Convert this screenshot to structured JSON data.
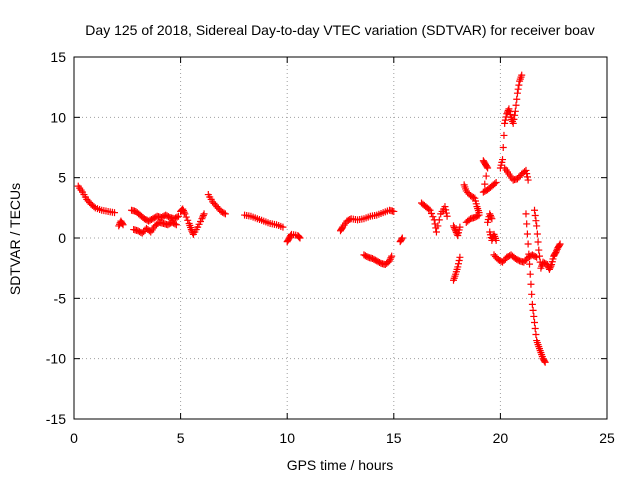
{
  "chart_data": {
    "type": "scatter",
    "title": "Day 125 of 2018, Sidereal Day-to-day VTEC variation (SDTVAR) for receiver boav",
    "xlabel": "GPS time / hours",
    "ylabel": "SDTVAR / TECUs",
    "xlim": [
      0,
      25
    ],
    "ylim": [
      -15,
      15
    ],
    "xticks": [
      0,
      5,
      10,
      15,
      20,
      25
    ],
    "yticks": [
      -15,
      -10,
      -5,
      0,
      5,
      10,
      15
    ],
    "xtick_labels": [
      "0",
      "5",
      "10",
      "15",
      "20",
      "25"
    ],
    "ytick_labels": [
      "-15",
      "-10",
      "-5",
      "0",
      "5",
      "10",
      "15"
    ],
    "grid": true,
    "marker": "+",
    "series": [
      {
        "name": "SDTVAR",
        "color": "#ff0000",
        "segments": [
          [
            [
              0.2,
              4.3
            ],
            [
              0.4,
              3.8
            ],
            [
              0.6,
              3.2
            ],
            [
              0.8,
              2.8
            ],
            [
              1.0,
              2.5
            ],
            [
              1.3,
              2.3
            ],
            [
              1.6,
              2.2
            ],
            [
              1.9,
              2.1
            ]
          ],
          [
            [
              2.1,
              1.0
            ],
            [
              2.2,
              1.4
            ],
            [
              2.3,
              1.1
            ]
          ],
          [
            [
              2.7,
              2.3
            ],
            [
              2.9,
              2.2
            ],
            [
              3.1,
              1.9
            ],
            [
              3.3,
              1.6
            ],
            [
              3.5,
              1.4
            ],
            [
              3.7,
              1.6
            ],
            [
              3.9,
              1.8
            ],
            [
              4.1,
              1.7
            ],
            [
              4.3,
              1.9
            ],
            [
              4.5,
              1.7
            ],
            [
              4.7,
              1.6
            ],
            [
              4.9,
              1.8
            ]
          ],
          [
            [
              2.8,
              0.7
            ],
            [
              3.0,
              0.6
            ],
            [
              3.2,
              0.4
            ],
            [
              3.4,
              0.8
            ],
            [
              3.6,
              0.5
            ],
            [
              3.8,
              1.0
            ],
            [
              4.0,
              1.3
            ],
            [
              4.2,
              1.2
            ],
            [
              4.4,
              1.1
            ],
            [
              4.6,
              1.3
            ],
            [
              4.8,
              1.1
            ]
          ],
          [
            [
              5.0,
              2.2
            ],
            [
              5.1,
              2.4
            ],
            [
              5.2,
              2.0
            ],
            [
              5.4,
              1.2
            ],
            [
              5.5,
              0.7
            ],
            [
              5.6,
              0.3
            ],
            [
              5.8,
              0.9
            ],
            [
              6.0,
              1.6
            ],
            [
              6.1,
              2.0
            ]
          ],
          [
            [
              6.3,
              3.6
            ],
            [
              6.5,
              3.0
            ],
            [
              6.7,
              2.6
            ],
            [
              6.9,
              2.2
            ],
            [
              7.1,
              2.0
            ]
          ],
          [
            [
              8.0,
              1.9
            ],
            [
              8.3,
              1.8
            ],
            [
              8.6,
              1.6
            ],
            [
              8.9,
              1.4
            ],
            [
              9.2,
              1.2
            ],
            [
              9.5,
              1.1
            ],
            [
              9.8,
              0.9
            ]
          ],
          [
            [
              10.0,
              -0.3
            ],
            [
              10.1,
              0.0
            ],
            [
              10.2,
              0.3
            ],
            [
              10.5,
              0.2
            ],
            [
              10.6,
              0.0
            ]
          ],
          [
            [
              12.5,
              0.6
            ],
            [
              12.6,
              0.9
            ],
            [
              12.8,
              1.4
            ],
            [
              13.0,
              1.6
            ],
            [
              13.3,
              1.5
            ],
            [
              13.6,
              1.6
            ],
            [
              13.9,
              1.8
            ],
            [
              14.2,
              1.9
            ],
            [
              14.5,
              2.1
            ],
            [
              14.8,
              2.3
            ],
            [
              15.0,
              2.2
            ]
          ],
          [
            [
              13.6,
              -1.4
            ],
            [
              13.8,
              -1.6
            ],
            [
              14.0,
              -1.7
            ],
            [
              14.2,
              -1.9
            ],
            [
              14.4,
              -2.1
            ],
            [
              14.6,
              -2.2
            ],
            [
              14.8,
              -1.9
            ],
            [
              14.9,
              -1.5
            ]
          ],
          [
            [
              15.3,
              -0.3
            ],
            [
              15.4,
              0.0
            ]
          ],
          [
            [
              16.3,
              2.9
            ],
            [
              16.5,
              2.6
            ],
            [
              16.7,
              2.3
            ],
            [
              16.9,
              1.5
            ],
            [
              17.0,
              0.5
            ],
            [
              17.2,
              2.0
            ],
            [
              17.4,
              2.6
            ],
            [
              17.5,
              1.8
            ]
          ],
          [
            [
              17.8,
              1.0
            ],
            [
              17.9,
              0.6
            ],
            [
              18.0,
              0.2
            ],
            [
              18.1,
              0.9
            ]
          ],
          [
            [
              17.8,
              -3.5
            ],
            [
              17.9,
              -3.0
            ],
            [
              18.0,
              -2.4
            ],
            [
              18.1,
              -1.6
            ]
          ],
          [
            [
              18.3,
              4.4
            ],
            [
              18.4,
              3.9
            ],
            [
              18.6,
              3.5
            ],
            [
              18.8,
              3.3
            ],
            [
              18.9,
              2.6
            ],
            [
              19.0,
              2.1
            ]
          ],
          [
            [
              18.4,
              1.3
            ],
            [
              18.6,
              1.6
            ],
            [
              18.8,
              1.7
            ],
            [
              19.0,
              1.9
            ]
          ],
          [
            [
              19.2,
              6.4
            ],
            [
              19.3,
              6.1
            ],
            [
              19.4,
              5.8
            ],
            [
              19.2,
              3.8
            ],
            [
              19.4,
              4.0
            ],
            [
              19.6,
              4.3
            ],
            [
              19.8,
              4.6
            ]
          ],
          [
            [
              19.4,
              1.3
            ],
            [
              19.5,
              2.0
            ],
            [
              19.6,
              1.6
            ]
          ],
          [
            [
              19.5,
              0.5
            ],
            [
              19.6,
              -0.2
            ],
            [
              19.7,
              0.3
            ],
            [
              19.8,
              -0.2
            ]
          ],
          [
            [
              19.7,
              -1.4
            ],
            [
              19.9,
              -1.8
            ],
            [
              20.1,
              -2.0
            ],
            [
              20.3,
              -1.6
            ],
            [
              20.5,
              -1.4
            ],
            [
              20.7,
              -1.7
            ],
            [
              20.9,
              -1.9
            ],
            [
              21.1,
              -2.0
            ],
            [
              21.3,
              -1.6
            ],
            [
              21.5,
              -1.4
            ],
            [
              21.7,
              -1.6
            ]
          ],
          [
            [
              20.0,
              5.8
            ],
            [
              20.1,
              6.5
            ],
            [
              20.2,
              9.5
            ],
            [
              20.3,
              10.3
            ],
            [
              20.4,
              10.7
            ],
            [
              20.5,
              10.0
            ],
            [
              20.6,
              9.5
            ],
            [
              20.7,
              10.5
            ],
            [
              20.8,
              12.0
            ],
            [
              20.9,
              13.0
            ],
            [
              21.0,
              13.5
            ]
          ],
          [
            [
              20.2,
              5.8
            ],
            [
              20.4,
              5.3
            ],
            [
              20.6,
              4.8
            ],
            [
              20.8,
              4.9
            ],
            [
              21.0,
              5.3
            ],
            [
              21.2,
              5.6
            ],
            [
              21.3,
              4.8
            ]
          ],
          [
            [
              21.2,
              2.0
            ],
            [
              21.3,
              -0.5
            ],
            [
              21.4,
              -3.0
            ],
            [
              21.5,
              -5.5
            ],
            [
              21.6,
              -7.0
            ],
            [
              21.7,
              -8.5
            ],
            [
              21.8,
              -9.0
            ],
            [
              21.9,
              -9.5
            ],
            [
              22.0,
              -10.0
            ],
            [
              22.1,
              -10.3
            ]
          ],
          [
            [
              21.6,
              2.3
            ],
            [
              21.7,
              1.0
            ],
            [
              21.8,
              -1.0
            ],
            [
              21.9,
              -2.5
            ],
            [
              22.0,
              -2.0
            ],
            [
              22.2,
              -2.2
            ],
            [
              22.3,
              -2.6
            ],
            [
              22.4,
              -2.2
            ],
            [
              22.5,
              -1.5
            ],
            [
              22.6,
              -1.2
            ],
            [
              22.7,
              -0.8
            ],
            [
              22.8,
              -0.5
            ]
          ]
        ]
      }
    ]
  }
}
